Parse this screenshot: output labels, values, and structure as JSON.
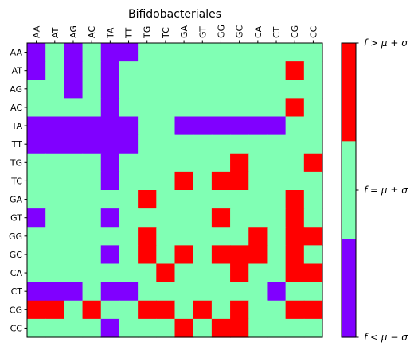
{
  "chart_data": {
    "type": "heatmap",
    "title": "Bifidobacteriales",
    "x_labels": [
      "AA",
      "AT",
      "AG",
      "AC",
      "TA",
      "TT",
      "TG",
      "TC",
      "GA",
      "GT",
      "GG",
      "GC",
      "CA",
      "CT",
      "CG",
      "CC"
    ],
    "y_labels": [
      "AA",
      "AT",
      "AG",
      "AC",
      "TA",
      "TT",
      "TG",
      "TC",
      "GA",
      "GT",
      "GG",
      "GC",
      "CA",
      "CT",
      "CG",
      "CC"
    ],
    "value_encoding": {
      "-1": "f < μ − σ",
      "0": "f = μ ± σ",
      "1": "f > μ + σ"
    },
    "values": [
      [
        -1,
        0,
        -1,
        0,
        -1,
        -1,
        0,
        0,
        0,
        0,
        0,
        0,
        0,
        0,
        0,
        0
      ],
      [
        -1,
        0,
        -1,
        0,
        -1,
        0,
        0,
        0,
        0,
        0,
        0,
        0,
        0,
        0,
        1,
        0
      ],
      [
        0,
        0,
        -1,
        0,
        -1,
        0,
        0,
        0,
        0,
        0,
        0,
        0,
        0,
        0,
        0,
        0
      ],
      [
        0,
        0,
        0,
        0,
        -1,
        0,
        0,
        0,
        0,
        0,
        0,
        0,
        0,
        0,
        1,
        0
      ],
      [
        -1,
        -1,
        -1,
        -1,
        -1,
        -1,
        0,
        0,
        -1,
        -1,
        -1,
        -1,
        -1,
        -1,
        0,
        0
      ],
      [
        -1,
        -1,
        -1,
        -1,
        -1,
        -1,
        0,
        0,
        0,
        0,
        0,
        0,
        0,
        0,
        0,
        0
      ],
      [
        0,
        0,
        0,
        0,
        -1,
        0,
        0,
        0,
        0,
        0,
        0,
        1,
        0,
        0,
        0,
        1
      ],
      [
        0,
        0,
        0,
        0,
        -1,
        0,
        0,
        0,
        1,
        0,
        1,
        1,
        0,
        0,
        0,
        0
      ],
      [
        0,
        0,
        0,
        0,
        0,
        0,
        1,
        0,
        0,
        0,
        0,
        0,
        0,
        0,
        1,
        0
      ],
      [
        -1,
        0,
        0,
        0,
        -1,
        0,
        0,
        0,
        0,
        0,
        1,
        0,
        0,
        0,
        1,
        0
      ],
      [
        0,
        0,
        0,
        0,
        0,
        0,
        1,
        0,
        0,
        0,
        0,
        0,
        1,
        0,
        1,
        1
      ],
      [
        0,
        0,
        0,
        0,
        -1,
        0,
        1,
        0,
        1,
        0,
        1,
        1,
        1,
        0,
        1,
        0
      ],
      [
        0,
        0,
        0,
        0,
        0,
        0,
        0,
        1,
        0,
        0,
        0,
        1,
        0,
        0,
        1,
        1
      ],
      [
        -1,
        -1,
        -1,
        0,
        -1,
        -1,
        0,
        0,
        0,
        0,
        0,
        0,
        0,
        -1,
        0,
        0
      ],
      [
        1,
        1,
        0,
        1,
        0,
        0,
        1,
        1,
        0,
        1,
        0,
        1,
        0,
        0,
        1,
        1
      ],
      [
        0,
        0,
        0,
        0,
        -1,
        0,
        0,
        0,
        1,
        0,
        1,
        1,
        0,
        0,
        0,
        0
      ]
    ],
    "colors": {
      "low": "#8000ff",
      "mid": "#80ffb4",
      "high": "#ff0000"
    },
    "colorbar": {
      "labels": [
        "f > μ + σ",
        "f = μ ± σ",
        "f < μ − σ"
      ]
    },
    "grid": false
  }
}
